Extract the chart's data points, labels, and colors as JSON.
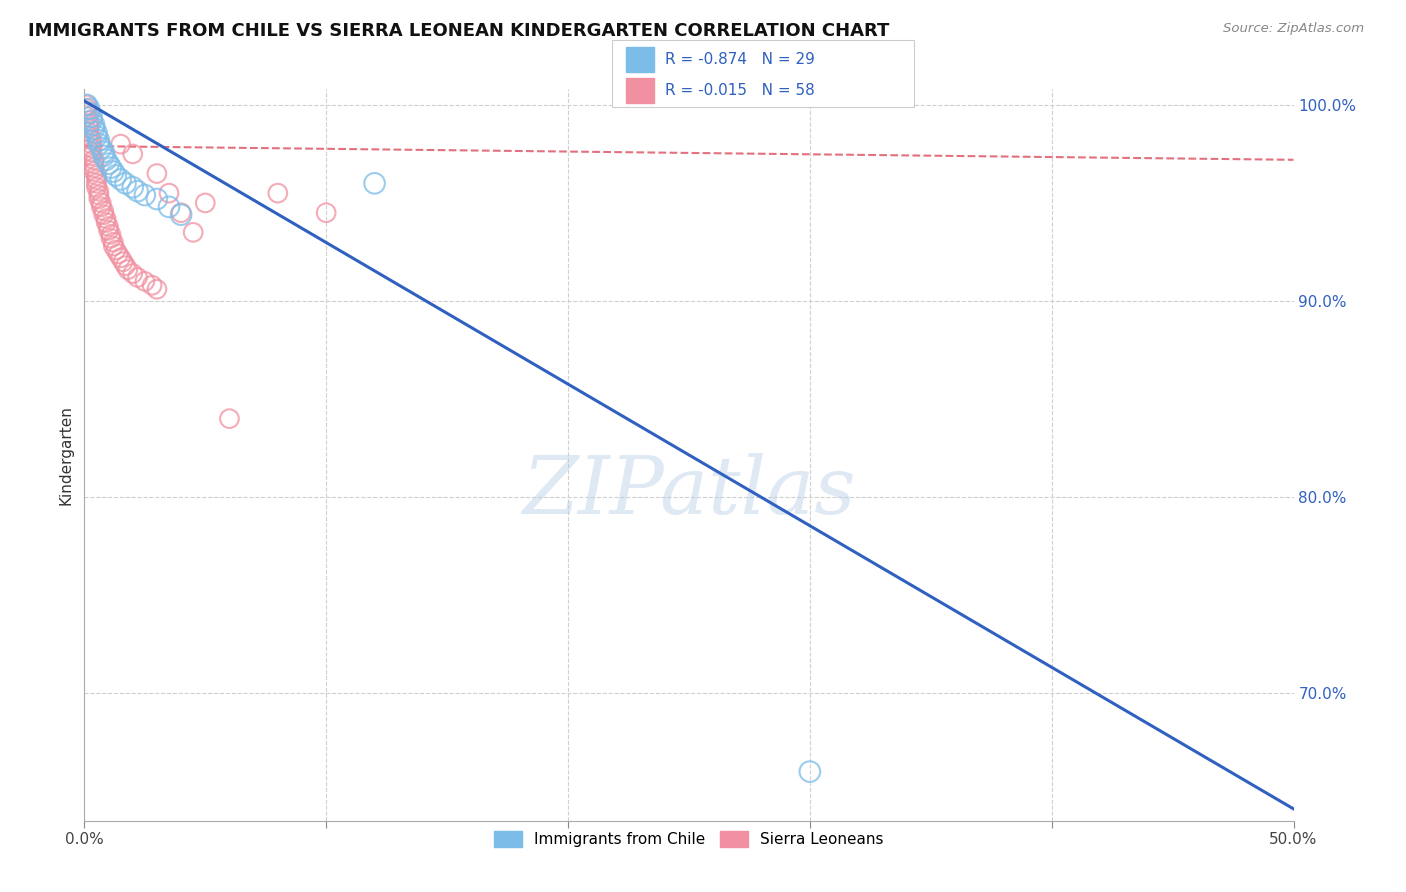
{
  "title": "IMMIGRANTS FROM CHILE VS SIERRA LEONEAN KINDERGARTEN CORRELATION CHART",
  "source_text": "Source: ZipAtlas.com",
  "ylabel": "Kindergarten",
  "xlim": [
    0.0,
    0.5
  ],
  "ylim": [
    0.635,
    1.008
  ],
  "xticks": [
    0.0,
    0.1,
    0.2,
    0.3,
    0.4,
    0.5
  ],
  "xticklabels": [
    "0.0%",
    "",
    "",
    "",
    "",
    "50.0%"
  ],
  "yticks_right": [
    0.7,
    0.8,
    0.9,
    1.0
  ],
  "yticklabels_right": [
    "70.0%",
    "80.0%",
    "90.0%",
    "100.0%"
  ],
  "grid_color": "#d0d0d0",
  "background_color": "#ffffff",
  "watermark_text": "ZIPatlas",
  "watermark_color": "#cddeed",
  "legend_R1": "R = -0.874",
  "legend_N1": "N = 29",
  "legend_R2": "R = -0.015",
  "legend_N2": "N = 58",
  "legend_label1": "Immigrants from Chile",
  "legend_label2": "Sierra Leoneans",
  "blue_marker_color": "#7bbce8",
  "blue_edge_color": "#7bbce8",
  "pink_marker_color": "#f090a0",
  "pink_edge_color": "#f090a0",
  "blue_line_color": "#3060c0",
  "pink_line_color": "#e06070",
  "blue_text_color": "#3060c0",
  "blue_scatter_x": [
    0.001,
    0.002,
    0.002,
    0.003,
    0.003,
    0.004,
    0.004,
    0.005,
    0.005,
    0.006,
    0.006,
    0.007,
    0.008,
    0.008,
    0.009,
    0.01,
    0.011,
    0.012,
    0.013,
    0.015,
    0.017,
    0.02,
    0.022,
    0.025,
    0.03,
    0.035,
    0.04,
    0.12,
    0.3
  ],
  "blue_scatter_y": [
    1.0,
    0.998,
    0.996,
    0.994,
    0.992,
    0.99,
    0.988,
    0.986,
    0.984,
    0.982,
    0.98,
    0.978,
    0.976,
    0.974,
    0.972,
    0.97,
    0.968,
    0.966,
    0.964,
    0.962,
    0.96,
    0.958,
    0.956,
    0.954,
    0.952,
    0.948,
    0.944,
    0.96,
    0.66
  ],
  "pink_scatter_x": [
    0.001,
    0.001,
    0.001,
    0.001,
    0.002,
    0.002,
    0.002,
    0.002,
    0.002,
    0.003,
    0.003,
    0.003,
    0.003,
    0.003,
    0.004,
    0.004,
    0.004,
    0.004,
    0.005,
    0.005,
    0.005,
    0.005,
    0.006,
    0.006,
    0.006,
    0.007,
    0.007,
    0.008,
    0.008,
    0.009,
    0.009,
    0.01,
    0.01,
    0.011,
    0.011,
    0.012,
    0.012,
    0.013,
    0.014,
    0.015,
    0.016,
    0.017,
    0.018,
    0.02,
    0.022,
    0.025,
    0.028,
    0.03,
    0.035,
    0.04,
    0.045,
    0.015,
    0.02,
    0.03,
    0.05,
    0.06,
    0.08,
    0.1
  ],
  "pink_scatter_y": [
    1.0,
    0.998,
    0.996,
    0.994,
    0.992,
    0.99,
    0.988,
    0.986,
    0.984,
    0.982,
    0.98,
    0.978,
    0.976,
    0.974,
    0.972,
    0.97,
    0.968,
    0.966,
    0.964,
    0.962,
    0.96,
    0.958,
    0.956,
    0.954,
    0.952,
    0.95,
    0.948,
    0.946,
    0.944,
    0.942,
    0.94,
    0.938,
    0.936,
    0.934,
    0.932,
    0.93,
    0.928,
    0.926,
    0.924,
    0.922,
    0.92,
    0.918,
    0.916,
    0.914,
    0.912,
    0.91,
    0.908,
    0.906,
    0.955,
    0.945,
    0.935,
    0.98,
    0.975,
    0.965,
    0.95,
    0.84,
    0.955,
    0.945
  ],
  "blue_line_x0": 0.0,
  "blue_line_y0": 1.002,
  "blue_line_x1": 0.5,
  "blue_line_y1": 0.641,
  "pink_line_x0": 0.0,
  "pink_line_y0": 0.979,
  "pink_line_x1": 0.5,
  "pink_line_y1": 0.972
}
